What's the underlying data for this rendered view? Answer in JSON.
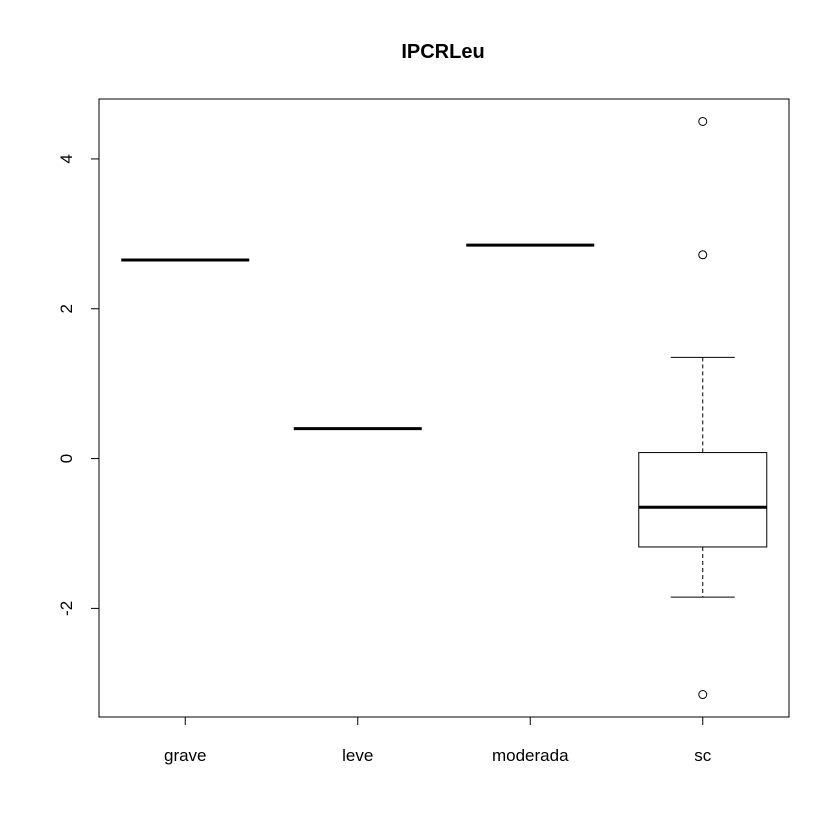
{
  "chart_data": {
    "type": "boxplot",
    "title": "IPCRLeu",
    "xlabel": "",
    "ylabel": "",
    "ylim": [
      -3.45,
      4.8
    ],
    "yticks": [
      -2,
      0,
      2,
      4
    ],
    "yticklabels": [
      "-2",
      "0",
      "2",
      "4"
    ],
    "categories": [
      "grave",
      "leve",
      "moderada",
      "sc"
    ],
    "boxes": [
      {
        "category": "grave",
        "min": 2.65,
        "q1": 2.65,
        "median": 2.65,
        "q3": 2.65,
        "max": 2.65,
        "outliers": []
      },
      {
        "category": "leve",
        "min": 0.4,
        "q1": 0.4,
        "median": 0.4,
        "q3": 0.4,
        "max": 0.4,
        "outliers": []
      },
      {
        "category": "moderada",
        "min": 2.85,
        "q1": 2.85,
        "median": 2.85,
        "q3": 2.85,
        "max": 2.85,
        "outliers": []
      },
      {
        "category": "sc",
        "min": -1.85,
        "q1": -1.18,
        "median": -0.65,
        "q3": 0.08,
        "max": 1.35,
        "outliers": [
          4.5,
          2.72,
          -3.15
        ]
      }
    ],
    "grid": false,
    "colors": {
      "stroke": "#000000",
      "fill": "#ffffff"
    }
  }
}
